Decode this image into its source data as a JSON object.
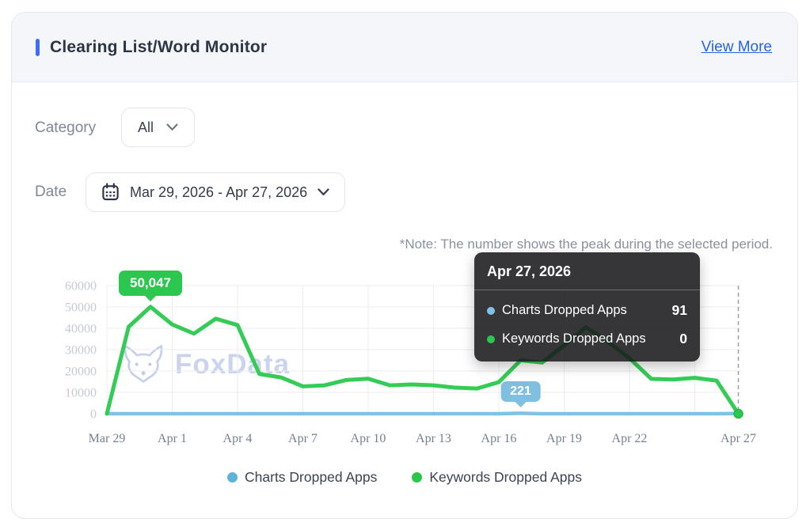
{
  "header": {
    "title": "Clearing List/Word Monitor",
    "view_more": "View More",
    "accent_color": "#3d6bfb"
  },
  "filters": {
    "category_label": "Category",
    "category_value": "All",
    "date_label": "Date",
    "date_value": "Mar 29, 2026 - Apr 27, 2026"
  },
  "note": "*Note: The number shows the peak during the selected period.",
  "icons": {
    "category_chevron": "chevron-down-icon",
    "date_calendar": "calendar-icon",
    "date_chevron": "chevron-down-icon",
    "watermark_logo": "fox-logo-icon"
  },
  "watermark": "FoxData",
  "tooltip": {
    "title": "Apr 27, 2026",
    "rows": [
      {
        "label": "Charts Dropped Apps",
        "value": "91",
        "color": "#7ec3e6"
      },
      {
        "label": "Keywords Dropped Apps",
        "value": "0",
        "color": "#2bc74e"
      }
    ]
  },
  "legend": [
    {
      "label": "Charts Dropped Apps",
      "color": "#5fb3db"
    },
    {
      "label": "Keywords Dropped Apps",
      "color": "#2bc64b"
    }
  ],
  "chart_data": {
    "type": "line",
    "x": [
      "Mar 29",
      "Mar 30",
      "Mar 31",
      "Apr 1",
      "Apr 2",
      "Apr 3",
      "Apr 4",
      "Apr 5",
      "Apr 6",
      "Apr 7",
      "Apr 8",
      "Apr 9",
      "Apr 10",
      "Apr 11",
      "Apr 12",
      "Apr 13",
      "Apr 14",
      "Apr 15",
      "Apr 16",
      "Apr 17",
      "Apr 18",
      "Apr 19",
      "Apr 20",
      "Apr 21",
      "Apr 22",
      "Apr 23",
      "Apr 24",
      "Apr 25",
      "Apr 26",
      "Apr 27"
    ],
    "x_tick_labels": [
      "Mar 29",
      "Apr 1",
      "Apr 4",
      "Apr 7",
      "Apr 10",
      "Apr 13",
      "Apr 16",
      "Apr 19",
      "Apr 22",
      "Apr 27"
    ],
    "x_tick_days": [
      0,
      3,
      6,
      9,
      12,
      15,
      18,
      21,
      24,
      29
    ],
    "grid_days": [
      0,
      3,
      6,
      9,
      12,
      15,
      18,
      21,
      24,
      27
    ],
    "ylim": [
      0,
      60000
    ],
    "y_ticks": [
      0,
      10000,
      20000,
      30000,
      40000,
      50000,
      60000
    ],
    "grid": true,
    "legend_position": "bottom",
    "series": [
      {
        "name": "Charts Dropped Apps",
        "color": "#7ec3e6",
        "values": [
          0,
          0,
          0,
          0,
          0,
          0,
          0,
          0,
          0,
          0,
          0,
          0,
          0,
          0,
          0,
          0,
          0,
          0,
          0,
          221,
          0,
          0,
          0,
          0,
          0,
          0,
          0,
          0,
          0,
          91
        ]
      },
      {
        "name": "Keywords Dropped Apps",
        "color": "#34cc56",
        "values": [
          0,
          40700,
          50047,
          41800,
          37500,
          44500,
          41500,
          18600,
          17000,
          12800,
          13300,
          15800,
          16400,
          13300,
          13700,
          13300,
          12200,
          11800,
          14800,
          25000,
          24000,
          32000,
          40500,
          33800,
          26000,
          16300,
          16000,
          16800,
          15500,
          0
        ]
      }
    ],
    "peak_badges": [
      {
        "series": "Keywords Dropped Apps",
        "label": "50,047",
        "value": 50047,
        "date": "Mar 31",
        "day_index": 2,
        "color": "#2bc74e"
      },
      {
        "series": "Charts Dropped Apps",
        "label": "221",
        "value": 221,
        "date": "Apr 17",
        "day_index": 19,
        "color": "#80bfe0"
      }
    ],
    "hover": {
      "date": "Apr 27",
      "day_index": 29
    }
  }
}
